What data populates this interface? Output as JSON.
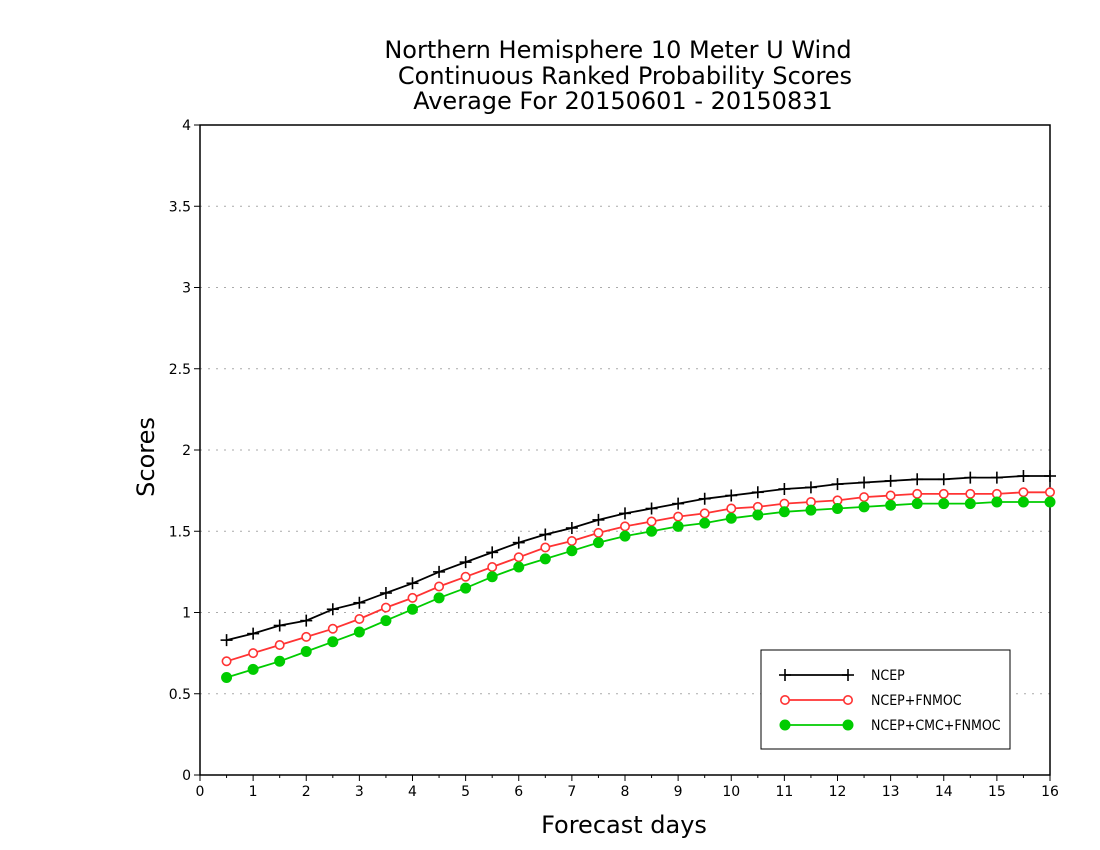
{
  "chart_data": {
    "type": "line",
    "title": [
      "Northern Hemisphere 10 Meter U Wind",
      "Continuous Ranked Probability Scores",
      "Average For 20150601 - 20150831"
    ],
    "xlabel": "Forecast days",
    "ylabel": "Scores",
    "xlim": [
      0,
      16
    ],
    "ylim": [
      0,
      4
    ],
    "xticks": [
      "0",
      "1",
      "2",
      "3",
      "4",
      "5",
      "6",
      "7",
      "8",
      "9",
      "10",
      "11",
      "12",
      "13",
      "14",
      "15",
      "16"
    ],
    "yticks": [
      "0",
      "0.5",
      "1",
      "1.5",
      "2",
      "2.5",
      "3",
      "3.5",
      "4"
    ],
    "grid": true,
    "legend_position": "bottom-right",
    "x": [
      0.5,
      1,
      1.5,
      2,
      2.5,
      3,
      3.5,
      4,
      4.5,
      5,
      5.5,
      6,
      6.5,
      7,
      7.5,
      8,
      8.5,
      9,
      9.5,
      10,
      10.5,
      11,
      11.5,
      12,
      12.5,
      13,
      13.5,
      14,
      14.5,
      15,
      15.5,
      16
    ],
    "series": [
      {
        "name": "NCEP",
        "color": "#000000",
        "marker": "plus",
        "values": [
          0.83,
          0.87,
          0.92,
          0.95,
          1.02,
          1.06,
          1.12,
          1.18,
          1.25,
          1.31,
          1.37,
          1.43,
          1.48,
          1.52,
          1.57,
          1.61,
          1.64,
          1.67,
          1.7,
          1.72,
          1.74,
          1.76,
          1.77,
          1.79,
          1.8,
          1.81,
          1.82,
          1.82,
          1.83,
          1.83,
          1.84,
          1.84
        ]
      },
      {
        "name": "NCEP+FNMOC",
        "color": "#ff3333",
        "marker": "open-circle",
        "values": [
          0.7,
          0.75,
          0.8,
          0.85,
          0.9,
          0.96,
          1.03,
          1.09,
          1.16,
          1.22,
          1.28,
          1.34,
          1.4,
          1.44,
          1.49,
          1.53,
          1.56,
          1.59,
          1.61,
          1.64,
          1.65,
          1.67,
          1.68,
          1.69,
          1.71,
          1.72,
          1.73,
          1.73,
          1.73,
          1.73,
          1.74,
          1.74
        ]
      },
      {
        "name": "NCEP+CMC+FNMOC",
        "color": "#00cc00",
        "marker": "filled-circle",
        "values": [
          0.6,
          0.65,
          0.7,
          0.76,
          0.82,
          0.88,
          0.95,
          1.02,
          1.09,
          1.15,
          1.22,
          1.28,
          1.33,
          1.38,
          1.43,
          1.47,
          1.5,
          1.53,
          1.55,
          1.58,
          1.6,
          1.62,
          1.63,
          1.64,
          1.65,
          1.66,
          1.67,
          1.67,
          1.67,
          1.68,
          1.68,
          1.68
        ]
      }
    ]
  }
}
